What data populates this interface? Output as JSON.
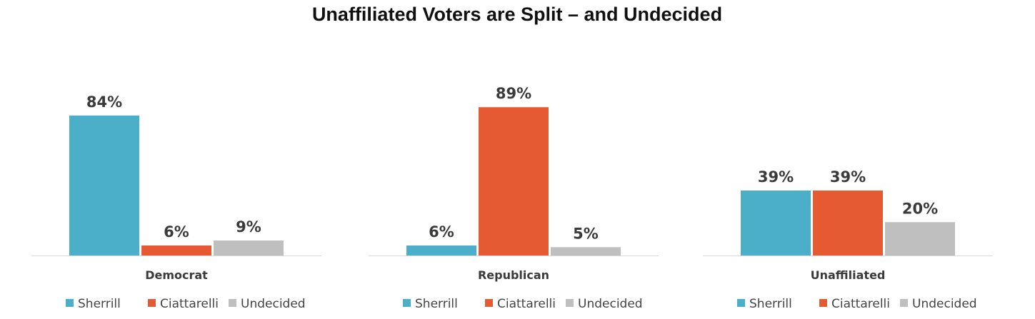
{
  "chart_data": {
    "type": "bar",
    "title": "Unaffiliated Voters are Split – and Undecided",
    "ylim": [
      0,
      100
    ],
    "grid": false,
    "legend_position": "bottom",
    "value_suffix": "%",
    "colors": {
      "Sherrill": "#4bafca",
      "Ciattarelli": "#e55a33",
      "Undecided": "#bfbfbf"
    },
    "panels": [
      {
        "category": "Democrat",
        "series": [
          {
            "name": "Sherrill",
            "value": 84,
            "label": "84%"
          },
          {
            "name": "Ciattarelli",
            "value": 6,
            "label": "6%"
          },
          {
            "name": "Undecided",
            "value": 9,
            "label": "9%"
          }
        ]
      },
      {
        "category": "Republican",
        "series": [
          {
            "name": "Sherrill",
            "value": 6,
            "label": "6%"
          },
          {
            "name": "Ciattarelli",
            "value": 89,
            "label": "89%"
          },
          {
            "name": "Undecided",
            "value": 5,
            "label": "5%"
          }
        ]
      },
      {
        "category": "Unaffiliated",
        "series": [
          {
            "name": "Sherrill",
            "value": 39,
            "label": "39%"
          },
          {
            "name": "Ciattarelli",
            "value": 39,
            "label": "39%"
          },
          {
            "name": "Undecided",
            "value": 20,
            "label": "20%"
          }
        ]
      }
    ],
    "legend": [
      "Sherrill",
      "Ciattarelli",
      "Undecided"
    ]
  }
}
